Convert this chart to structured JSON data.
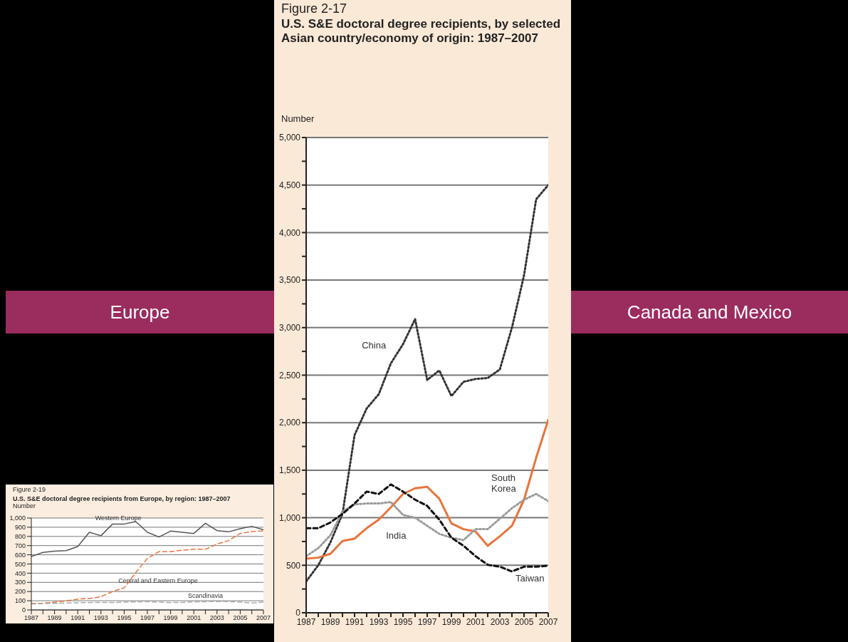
{
  "chart_data": [
    {
      "type": "line",
      "title": "Figure 2-17",
      "subtitle": "U.S. S&E doctoral degree recipients, by selected Asian country/economy of origin: 1987–2007",
      "ylabel": "Number",
      "x": [
        1987,
        1988,
        1989,
        1990,
        1991,
        1992,
        1993,
        1994,
        1995,
        1996,
        1997,
        1998,
        1999,
        2000,
        2001,
        2002,
        2003,
        2004,
        2005,
        2006,
        2007
      ],
      "xlim": [
        1987,
        2007
      ],
      "xticks": [
        1987,
        {
          "value": 1988,
          "label": null
        },
        1989,
        {
          "value": 1990,
          "label": null
        },
        1991,
        {
          "value": 1992,
          "label": null
        },
        1993,
        {
          "value": 1994,
          "label": null
        },
        1995,
        {
          "value": 1996,
          "label": null
        },
        1997,
        {
          "value": 1998,
          "label": null
        },
        1999,
        {
          "value": 2000,
          "label": null
        },
        2001,
        {
          "value": 2002,
          "label": null
        },
        2003,
        {
          "value": 2004,
          "label": null
        },
        2005,
        {
          "value": 2006,
          "label": null
        },
        2007
      ],
      "ylim": [
        0,
        5000
      ],
      "yticks": [
        {
          "value": 0,
          "label": "0"
        },
        {
          "value": 250,
          "label": null
        },
        {
          "value": 500,
          "label": "500"
        },
        {
          "value": 750,
          "label": null
        },
        {
          "value": 1000,
          "label": "1,000"
        },
        {
          "value": 1250,
          "label": null
        },
        {
          "value": 1500,
          "label": "1,500"
        },
        {
          "value": 1750,
          "label": null
        },
        {
          "value": 2000,
          "label": "2,000"
        },
        {
          "value": 2250,
          "label": null
        },
        {
          "value": 2500,
          "label": "2,500"
        },
        {
          "value": 2750,
          "label": null
        },
        {
          "value": 3000,
          "label": "3,000"
        },
        {
          "value": 3250,
          "label": null
        },
        {
          "value": 3500,
          "label": "3,500"
        },
        {
          "value": 3750,
          "label": null
        },
        {
          "value": 4000,
          "label": "4,000"
        },
        {
          "value": 4250,
          "label": null
        },
        {
          "value": 4500,
          "label": "4,500"
        },
        {
          "value": 4750,
          "label": null
        },
        {
          "value": 5000,
          "label": "5,000"
        }
      ],
      "grid": "y",
      "marker": "none",
      "series": [
        {
          "name": "China",
          "color": "#333333",
          "line_style": "dotted",
          "values": [
            330,
            500,
            740,
            1040,
            1870,
            2150,
            2300,
            2625,
            2825,
            3090,
            2450,
            2550,
            2280,
            2430,
            2460,
            2470,
            2560,
            3000,
            3550,
            4350,
            4500
          ]
        },
        {
          "name": "India",
          "color": "#e8743b",
          "line_style": "solid",
          "values": [
            570,
            580,
            620,
            755,
            780,
            890,
            980,
            1110,
            1250,
            1310,
            1325,
            1200,
            940,
            880,
            855,
            705,
            805,
            915,
            1190,
            1630,
            2030
          ]
        },
        {
          "name": "South Korea",
          "color": "#9a9a9a",
          "line_style": "dotted",
          "values": [
            595,
            680,
            815,
            1065,
            1140,
            1150,
            1150,
            1165,
            1030,
            1000,
            915,
            830,
            790,
            765,
            880,
            880,
            990,
            1100,
            1190,
            1250,
            1175
          ]
        },
        {
          "name": "Taiwan",
          "color": "#111111",
          "line_style": "dashed",
          "values": [
            890,
            890,
            950,
            1040,
            1150,
            1275,
            1250,
            1350,
            1275,
            1190,
            1125,
            980,
            790,
            705,
            595,
            505,
            485,
            435,
            485,
            485,
            495
          ]
        }
      ]
    },
    {
      "type": "line",
      "title": "Figure 2-19",
      "subtitle": "U.S. S&E doctoral degree recipients from Europe, by region: 1987–2007",
      "ylabel": "Number",
      "x": [
        1987,
        1988,
        1989,
        1990,
        1991,
        1992,
        1993,
        1994,
        1995,
        1996,
        1997,
        1998,
        1999,
        2000,
        2001,
        2002,
        2003,
        2004,
        2005,
        2006,
        2007
      ],
      "xlim": [
        1987,
        2007
      ],
      "xticks": [
        1987,
        {
          "value": 1988,
          "label": null
        },
        1989,
        {
          "value": 1990,
          "label": null
        },
        1991,
        {
          "value": 1992,
          "label": null
        },
        1993,
        {
          "value": 1994,
          "label": null
        },
        1995,
        {
          "value": 1996,
          "label": null
        },
        1997,
        {
          "value": 1998,
          "label": null
        },
        1999,
        {
          "value": 2000,
          "label": null
        },
        2001,
        {
          "value": 2002,
          "label": null
        },
        2003,
        {
          "value": 2004,
          "label": null
        },
        2005,
        {
          "value": 2006,
          "label": null
        },
        2007
      ],
      "ylim": [
        0,
        1000
      ],
      "yticks": [
        0,
        100,
        200,
        300,
        400,
        500,
        600,
        700,
        800,
        900,
        {
          "value": 1000,
          "label": "1,000"
        }
      ],
      "grid": "y",
      "marker": "none",
      "series": [
        {
          "name": "Western Europe",
          "color": "#555555",
          "line_style": "solid",
          "values": [
            582,
            626,
            640,
            645,
            690,
            845,
            807,
            935,
            935,
            961,
            845,
            794,
            858,
            845,
            832,
            943,
            863,
            850,
            884,
            910,
            871
          ]
        },
        {
          "name": "Central and Eastern Europe",
          "color": "#e8743b",
          "line_style": "dashed",
          "values": [
            72,
            72,
            85,
            98,
            118,
            124,
            144,
            200,
            240,
            407,
            562,
            634,
            634,
            650,
            660,
            660,
            716,
            755,
            832,
            853,
            858
          ]
        },
        {
          "name": "Scandinavia",
          "color": "#aaaaaa",
          "line_style": "dashed",
          "values": [
            65,
            70,
            72,
            75,
            78,
            80,
            82,
            80,
            85,
            88,
            90,
            85,
            80,
            82,
            88,
            90,
            92,
            90,
            85,
            75,
            85
          ]
        }
      ]
    },
    {
      "type": "other",
      "title": "Europe"
    },
    {
      "type": "other",
      "title": "Canada and Mexico"
    }
  ]
}
